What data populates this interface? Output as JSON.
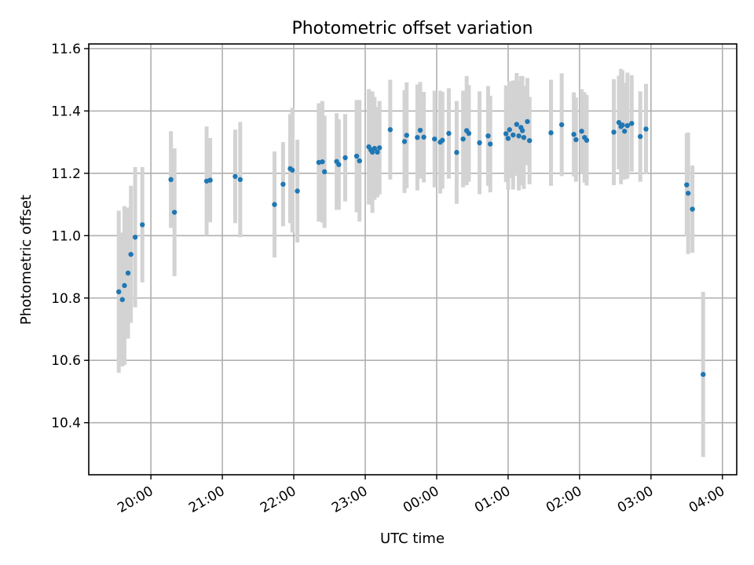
{
  "chart_data": {
    "type": "scatter",
    "title": "Photometric offset variation",
    "xlabel": "UTC time",
    "ylabel": "Photometric offset",
    "x_unit": "time of day (hours, UTC; values past 24 are after midnight)",
    "xlim": [
      19.13,
      28.2
    ],
    "ylim": [
      10.233,
      11.615
    ],
    "x_tick_labels": [
      "20:00",
      "21:00",
      "22:00",
      "23:00",
      "00:00",
      "01:00",
      "02:00",
      "03:00",
      "04:00"
    ],
    "y_tick_labels": [
      "10.4",
      "10.6",
      "10.8",
      "11.0",
      "11.2",
      "11.4",
      "11.6"
    ],
    "grid": true,
    "point_color": "#1f77b4",
    "errorbar_color": "#d3d3d3",
    "series": [
      {
        "x": [
          19.55,
          19.6,
          19.63,
          19.68,
          19.72,
          19.78,
          19.88,
          20.28,
          20.33,
          20.78,
          20.83,
          21.18,
          21.25,
          21.73,
          21.85,
          21.95,
          21.98,
          22.05,
          22.35,
          22.4,
          22.43,
          22.6,
          22.63,
          22.72,
          22.88,
          22.92,
          23.05,
          23.08,
          23.1,
          23.13,
          23.17,
          23.2,
          23.35,
          23.55,
          23.58,
          23.73,
          23.77,
          23.82,
          23.97,
          24.05,
          24.08,
          24.17,
          24.28,
          24.37,
          24.42,
          24.45,
          24.6,
          24.72,
          24.75,
          24.97,
          25.0,
          25.02,
          25.07,
          25.12,
          25.15,
          25.18,
          25.2,
          25.22,
          25.27,
          25.3,
          25.6,
          25.75,
          25.92,
          25.95,
          26.03,
          26.07,
          26.1,
          26.48,
          26.55,
          26.58,
          26.6,
          26.63,
          26.67,
          26.73,
          26.85,
          26.93,
          27.5,
          27.52,
          27.58,
          27.73
        ],
        "y": [
          10.82,
          10.795,
          10.84,
          10.88,
          10.94,
          10.995,
          11.035,
          11.18,
          11.075,
          11.175,
          11.178,
          11.19,
          11.18,
          11.1,
          11.165,
          11.215,
          11.21,
          11.143,
          11.235,
          11.237,
          11.205,
          11.238,
          11.228,
          11.25,
          11.255,
          11.24,
          11.285,
          11.275,
          11.268,
          11.28,
          11.268,
          11.282,
          11.34,
          11.302,
          11.322,
          11.315,
          11.338,
          11.316,
          11.31,
          11.3,
          11.306,
          11.328,
          11.267,
          11.31,
          11.337,
          11.328,
          11.298,
          11.32,
          11.294,
          11.327,
          11.312,
          11.34,
          11.323,
          11.357,
          11.32,
          11.347,
          11.337,
          11.315,
          11.366,
          11.305,
          11.33,
          11.356,
          11.325,
          11.308,
          11.335,
          11.315,
          11.306,
          11.332,
          11.363,
          11.35,
          11.355,
          11.335,
          11.353,
          11.36,
          11.318,
          11.342,
          11.163,
          11.136,
          11.085,
          10.555
        ],
        "err": [
          0.26,
          0.215,
          0.255,
          0.21,
          0.22,
          0.225,
          0.185,
          0.155,
          0.205,
          0.175,
          0.135,
          0.15,
          0.185,
          0.17,
          0.135,
          0.175,
          0.2,
          0.165,
          0.19,
          0.195,
          0.18,
          0.155,
          0.145,
          0.14,
          0.18,
          0.195,
          0.185,
          0.175,
          0.195,
          0.165,
          0.145,
          0.15,
          0.16,
          0.165,
          0.17,
          0.17,
          0.155,
          0.145,
          0.155,
          0.165,
          0.155,
          0.145,
          0.165,
          0.155,
          0.175,
          0.155,
          0.165,
          0.16,
          0.155,
          0.155,
          0.165,
          0.155,
          0.175,
          0.165,
          0.175,
          0.165,
          0.175,
          0.165,
          0.14,
          0.14,
          0.17,
          0.165,
          0.135,
          0.135,
          0.135,
          0.145,
          0.145,
          0.17,
          0.15,
          0.185,
          0.175,
          0.155,
          0.17,
          0.155,
          0.145,
          0.145,
          0.165,
          0.195,
          0.14,
          0.265
        ]
      }
    ]
  }
}
